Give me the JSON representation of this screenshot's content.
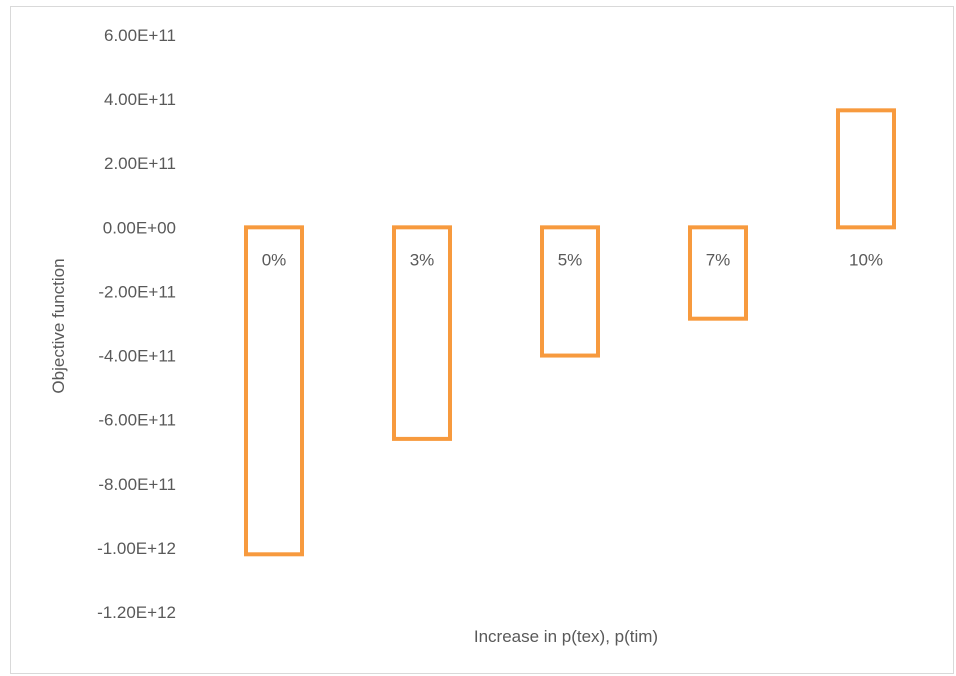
{
  "chart_data": {
    "type": "bar",
    "categories": [
      "0%",
      "3%",
      "5%",
      "7%",
      "10%"
    ],
    "values": [
      -1020000000000.0,
      -660000000000.0,
      -400000000000.0,
      -285000000000.0,
      365000000000.0
    ],
    "xlabel": "Increase in p(tex), p(tim)",
    "ylabel": "Objective function",
    "ylim": [
      -1200000000000.0,
      600000000000.0
    ],
    "ytick_labels": [
      "6.00E+11",
      "4.00E+11",
      "2.00E+11",
      "0.00E+00",
      "-2.00E+11",
      "-4.00E+11",
      "-6.00E+11",
      "-8.00E+11",
      "-1.00E+12",
      "-1.20E+12"
    ],
    "grid": false,
    "bar_style": "outline",
    "bar_color": "#f79a3e",
    "text_color": "#595959"
  }
}
